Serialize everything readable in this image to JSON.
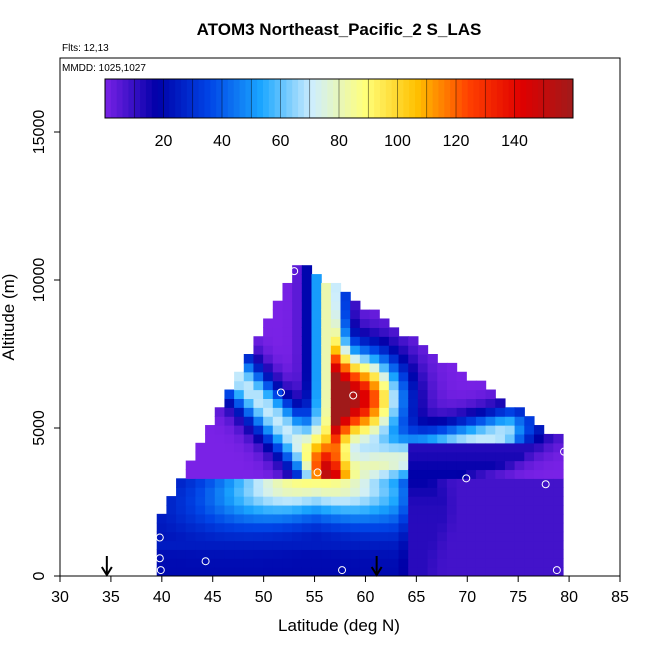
{
  "chart_data": {
    "type": "heatmap",
    "title": "ATOM3 Northeast_Pacific_2 S_LAS",
    "annotations": [
      "Flts: 12,13",
      "MMDD: 1025,1027"
    ],
    "xlabel": "Latitude (deg N)",
    "ylabel": "Altitude (m)",
    "xlim": [
      30,
      85
    ],
    "ylim": [
      0,
      17500
    ],
    "xticks": [
      "30",
      "35",
      "40",
      "45",
      "50",
      "55",
      "60",
      "65",
      "70",
      "75",
      "80",
      "85"
    ],
    "yticks": [
      "0",
      "5000",
      "10000",
      "15000"
    ],
    "colorbar": {
      "ticks": [
        "20",
        "40",
        "60",
        "80",
        "100",
        "120",
        "140"
      ],
      "range": [
        0,
        160
      ],
      "colors": [
        "#7a22e6",
        "#0000a8",
        "#0044e6",
        "#1aa6ff",
        "#cfeefc",
        "#ffff7a",
        "#ffc000",
        "#ff4000",
        "#e00000",
        "#a01a1a"
      ]
    },
    "grid": {
      "lat_range": [
        39.5,
        79
      ],
      "alt_range": [
        0,
        10500
      ],
      "apex": [
        53.5,
        10500
      ],
      "inner_apex": [
        56.5,
        3400
      ],
      "upper_left_boundary": [
        [
          39.5,
          1500
        ],
        [
          53.5,
          10500
        ]
      ],
      "upper_right_boundary": [
        [
          53.5,
          10500
        ],
        [
          79,
          4500
        ]
      ],
      "core_max": {
        "lat": 59,
        "alt": 6000,
        "value": 150
      }
    },
    "sample_points": [
      {
        "lat": 39.8,
        "alt": 1300
      },
      {
        "lat": 39.8,
        "alt": 600
      },
      {
        "lat": 39.9,
        "alt": 200
      },
      {
        "lat": 44.3,
        "alt": 500
      },
      {
        "lat": 51.7,
        "alt": 6200
      },
      {
        "lat": 53.0,
        "alt": 10300
      },
      {
        "lat": 55.3,
        "alt": 3500
      },
      {
        "lat": 57.7,
        "alt": 200
      },
      {
        "lat": 58.8,
        "alt": 6100
      },
      {
        "lat": 69.9,
        "alt": 3300
      },
      {
        "lat": 77.7,
        "alt": 3100
      },
      {
        "lat": 78.8,
        "alt": 200
      },
      {
        "lat": 79.5,
        "alt": 4200
      }
    ],
    "arrows": [
      {
        "lat": 34.6,
        "alt": 0
      },
      {
        "lat": 61.1,
        "alt": 0
      }
    ]
  }
}
